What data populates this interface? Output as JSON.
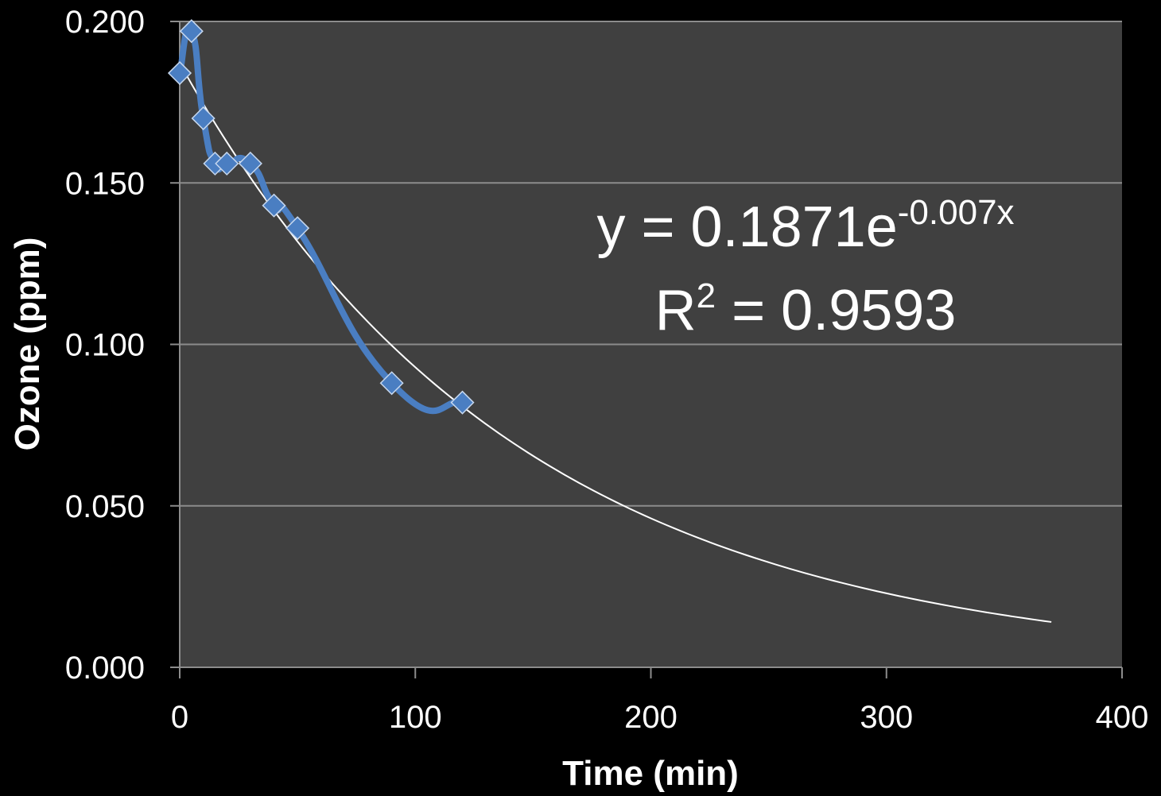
{
  "chart_data": {
    "type": "scatter",
    "title": "",
    "xlabel": "Time (min)",
    "ylabel": "Ozone (ppm)",
    "xlim": [
      0,
      400
    ],
    "ylim": [
      0,
      0.2
    ],
    "x_ticks": [
      "0",
      "100",
      "200",
      "300",
      "400"
    ],
    "y_ticks": [
      "0.000",
      "0.050",
      "0.100",
      "0.150",
      "0.200"
    ],
    "grid": "horizontal",
    "legend": "none",
    "series": [
      {
        "color": "#4a7ec2",
        "marker": "diamond",
        "line": "smooth",
        "points": [
          {
            "x": 0,
            "y": 0.184
          },
          {
            "x": 5,
            "y": 0.197
          },
          {
            "x": 10,
            "y": 0.17
          },
          {
            "x": 15,
            "y": 0.156
          },
          {
            "x": 20,
            "y": 0.156
          },
          {
            "x": 30,
            "y": 0.156
          },
          {
            "x": 40,
            "y": 0.143
          },
          {
            "x": 50,
            "y": 0.136
          },
          {
            "x": 90,
            "y": 0.088
          },
          {
            "x": 120,
            "y": 0.082
          }
        ]
      }
    ],
    "trendline": {
      "type": "exponential",
      "a": 0.1871,
      "b": -0.007,
      "x_range": [
        0,
        370
      ],
      "color": "#ffffff"
    },
    "annotation": {
      "equation_prefix": "y = 0.1871e",
      "equation_exponent": "-0.007x",
      "r2_prefix": "R",
      "r2_exponent": "2",
      "r2_suffix": " = 0.9593"
    }
  }
}
